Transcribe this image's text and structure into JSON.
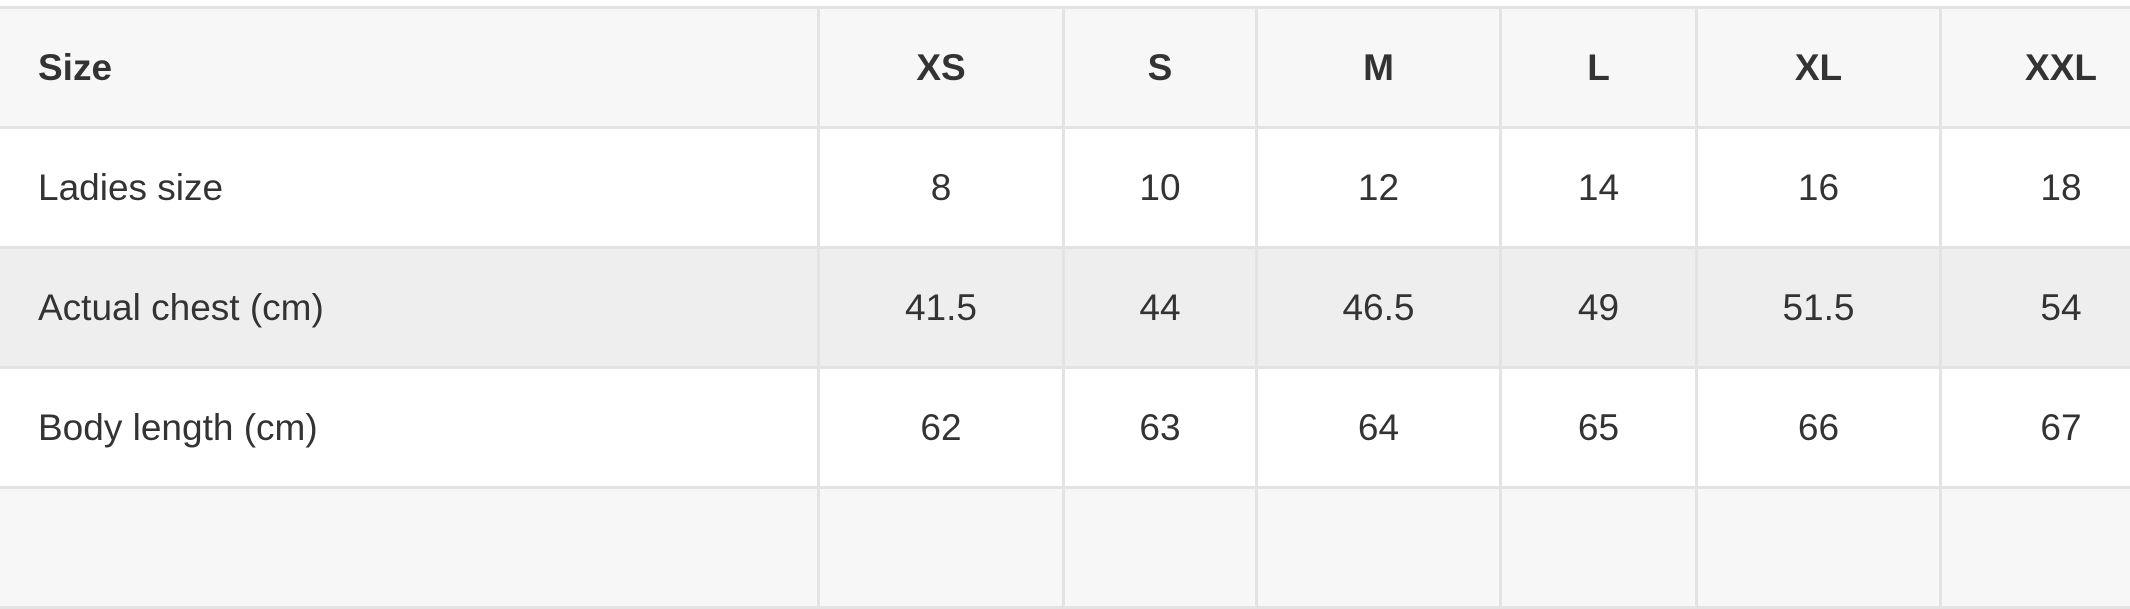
{
  "table": {
    "header": [
      "Size",
      "XS",
      "S",
      "M",
      "L",
      "XL",
      "XXL"
    ],
    "rows": [
      {
        "label": "Ladies size",
        "values": [
          "8",
          "10",
          "12",
          "14",
          "16",
          "18"
        ]
      },
      {
        "label": "Actual chest (cm)",
        "values": [
          "41.5",
          "44",
          "46.5",
          "49",
          "51.5",
          "54"
        ]
      },
      {
        "label": "Body length (cm)",
        "values": [
          "62",
          "63",
          "64",
          "65",
          "66",
          "67"
        ]
      }
    ]
  },
  "colors": {
    "header_bg": "#f7f7f7",
    "stripe_bg": "#eeeeee",
    "border": "#e3e3e3",
    "text": "#333333"
  }
}
